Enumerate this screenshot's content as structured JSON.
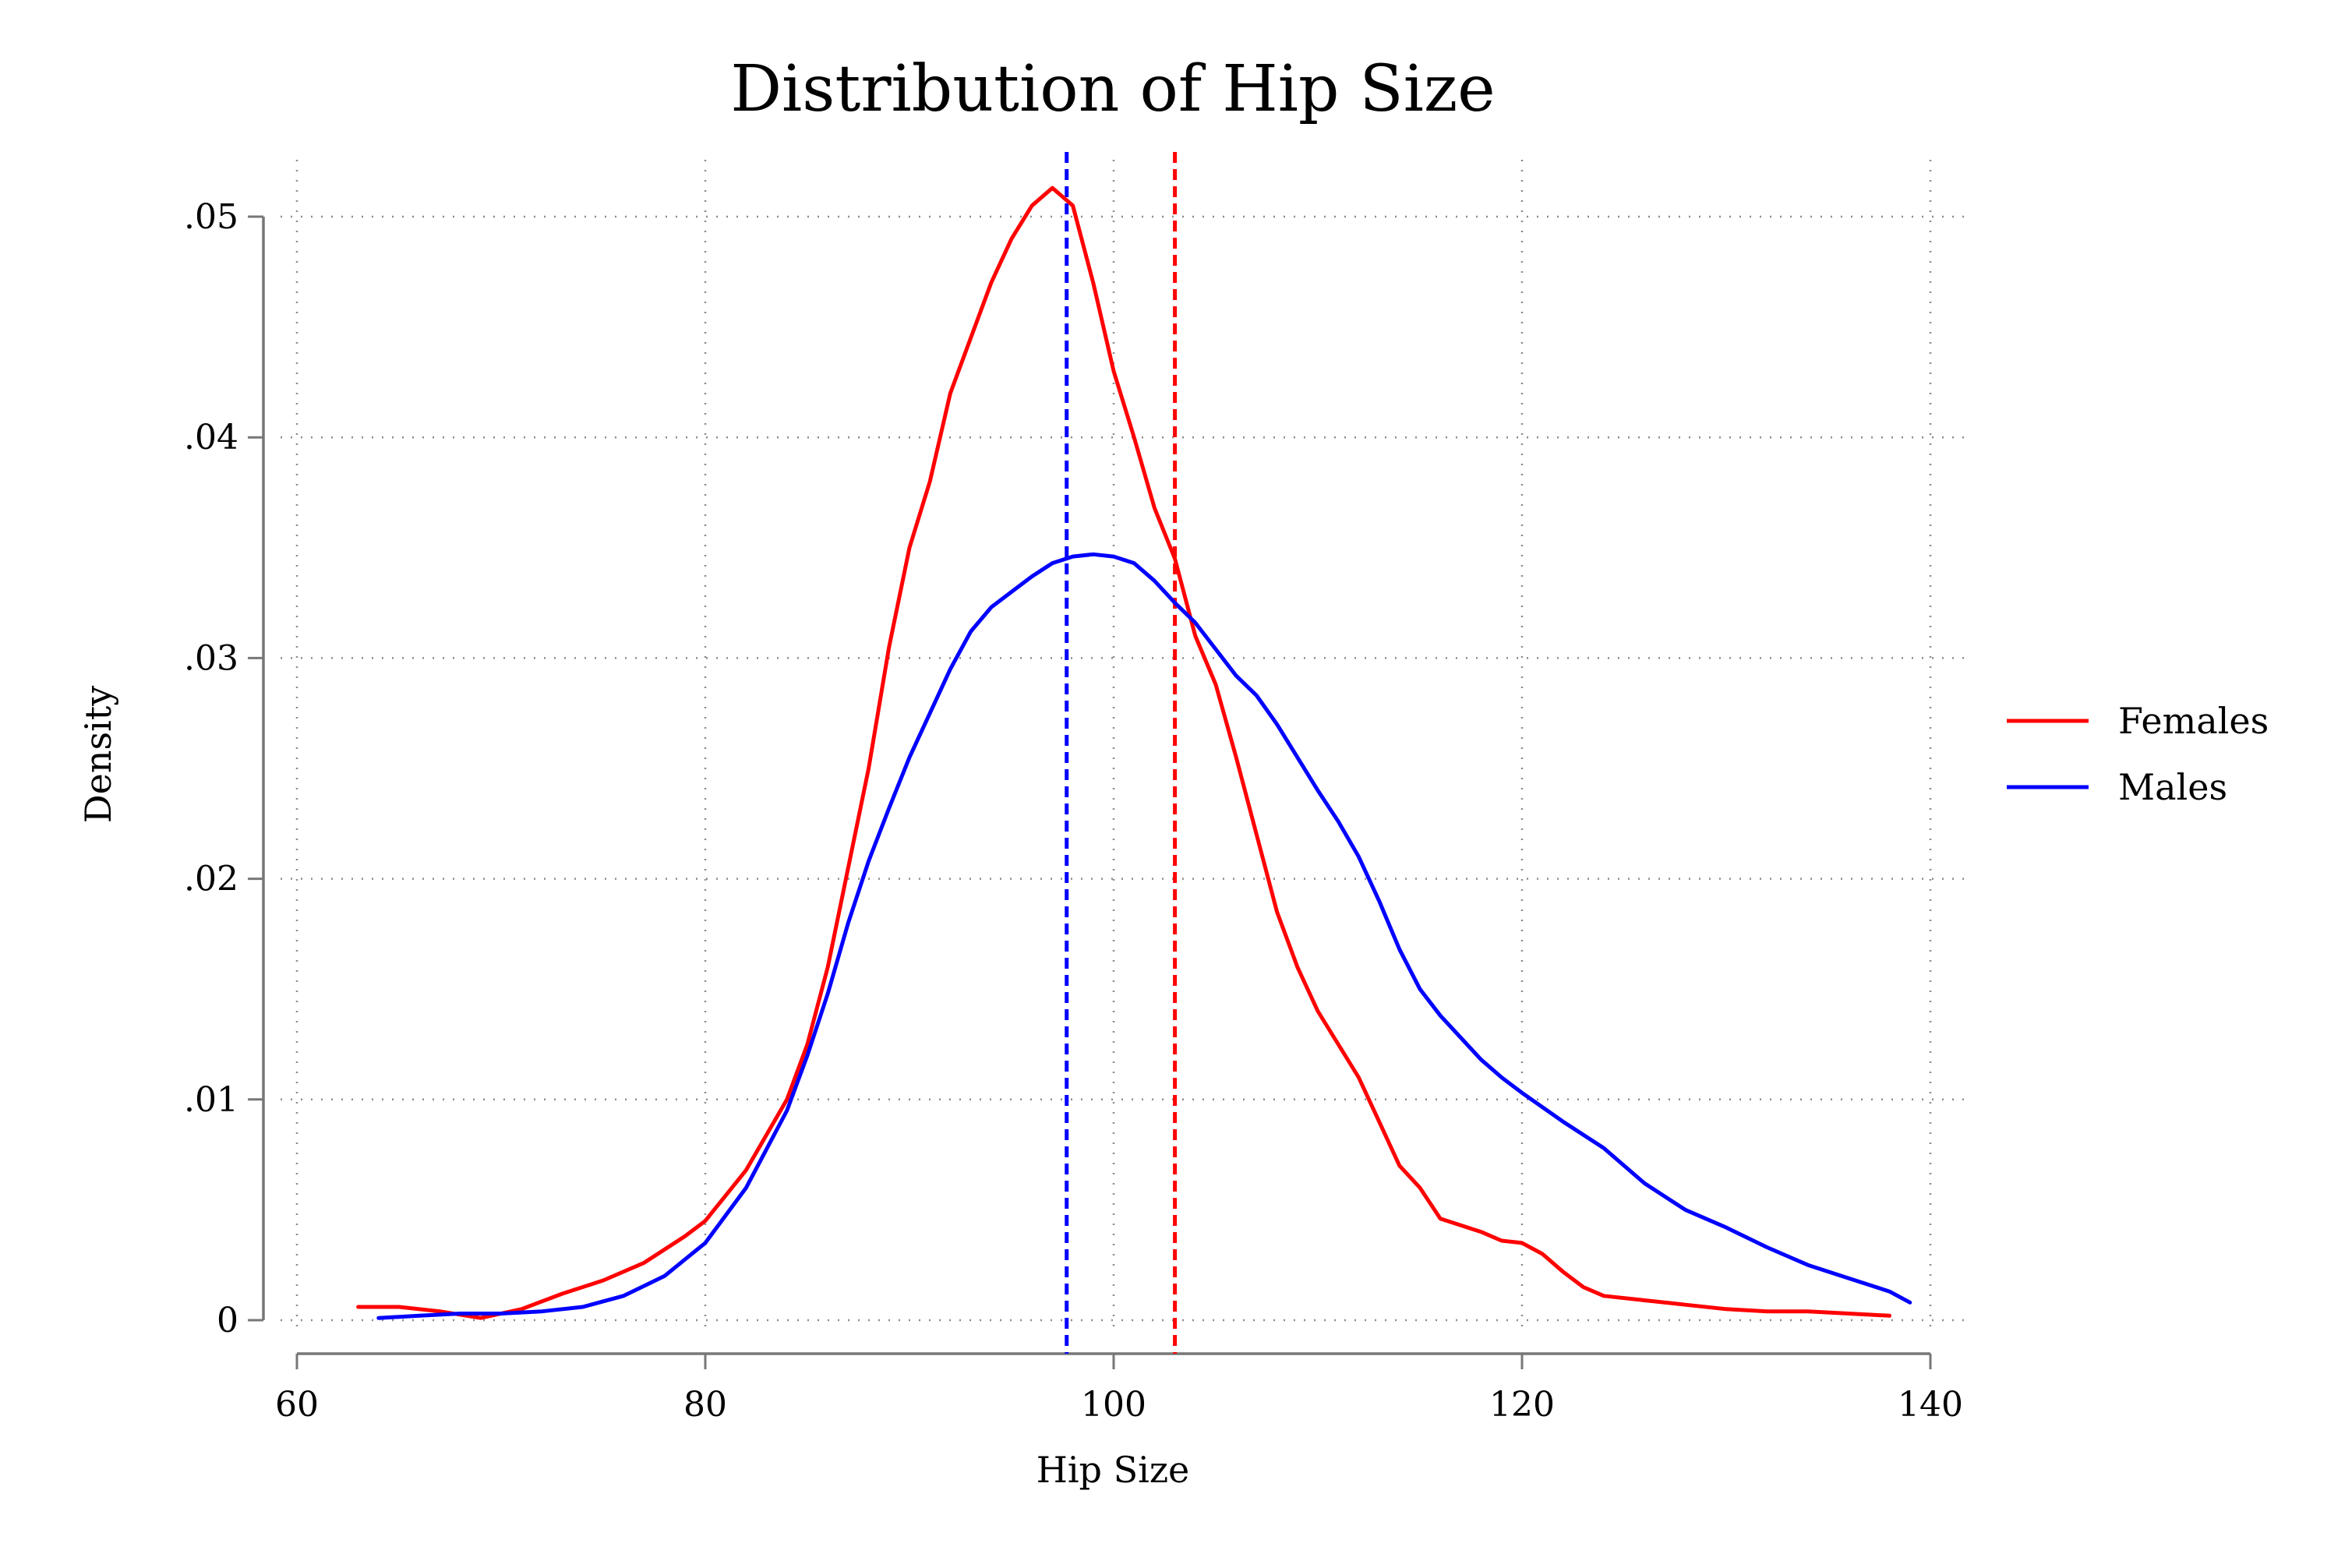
{
  "chart_data": {
    "type": "line",
    "title": "Distribution of Hip Size",
    "xlabel": "Hip Size",
    "ylabel": "Density",
    "xlim": [
      60,
      140
    ],
    "ylim": [
      0,
      0.05
    ],
    "xticks": [
      60,
      80,
      100,
      120,
      140
    ],
    "xtick_labels": [
      "60",
      "80",
      "100",
      "120",
      "140"
    ],
    "yticks": [
      0,
      0.01,
      0.02,
      0.03,
      0.04,
      0.05
    ],
    "ytick_labels": [
      "0",
      ".01",
      ".02",
      ".03",
      ".04",
      ".05"
    ],
    "grid": "dotted",
    "legend_position": "right",
    "series": [
      {
        "name": "Females",
        "color": "#ff0000",
        "points": [
          [
            63,
            0.0006
          ],
          [
            65,
            0.0006
          ],
          [
            67,
            0.0004
          ],
          [
            69,
            0.0001
          ],
          [
            71,
            0.0005
          ],
          [
            73,
            0.0012
          ],
          [
            75,
            0.0018
          ],
          [
            77,
            0.0026
          ],
          [
            79,
            0.0038
          ],
          [
            80,
            0.0045
          ],
          [
            82,
            0.0068
          ],
          [
            84,
            0.01
          ],
          [
            85,
            0.0125
          ],
          [
            86,
            0.016
          ],
          [
            87,
            0.0205
          ],
          [
            88,
            0.025
          ],
          [
            89,
            0.0305
          ],
          [
            90,
            0.035
          ],
          [
            91,
            0.038
          ],
          [
            92,
            0.042
          ],
          [
            93,
            0.0445
          ],
          [
            94,
            0.047
          ],
          [
            95,
            0.049
          ],
          [
            96,
            0.0505
          ],
          [
            97,
            0.0513
          ],
          [
            98,
            0.0505
          ],
          [
            99,
            0.047
          ],
          [
            100,
            0.043
          ],
          [
            101,
            0.04
          ],
          [
            102,
            0.0368
          ],
          [
            103,
            0.0345
          ],
          [
            104,
            0.031
          ],
          [
            105,
            0.0288
          ],
          [
            106,
            0.0255
          ],
          [
            107,
            0.022
          ],
          [
            108,
            0.0185
          ],
          [
            109,
            0.016
          ],
          [
            110,
            0.014
          ],
          [
            111,
            0.0125
          ],
          [
            112,
            0.011
          ],
          [
            113,
            0.009
          ],
          [
            114,
            0.007
          ],
          [
            115,
            0.006
          ],
          [
            116,
            0.0046
          ],
          [
            117,
            0.0043
          ],
          [
            118,
            0.004
          ],
          [
            119,
            0.0036
          ],
          [
            120,
            0.0035
          ],
          [
            121,
            0.003
          ],
          [
            122,
            0.0022
          ],
          [
            123,
            0.0015
          ],
          [
            124,
            0.0011
          ],
          [
            126,
            0.0009
          ],
          [
            128,
            0.0007
          ],
          [
            130,
            0.0005
          ],
          [
            132,
            0.0004
          ],
          [
            134,
            0.0004
          ],
          [
            136,
            0.0003
          ],
          [
            138,
            0.0002
          ]
        ]
      },
      {
        "name": "Males",
        "color": "#0000ff",
        "points": [
          [
            64,
            0.0001
          ],
          [
            66,
            0.0002
          ],
          [
            68,
            0.0003
          ],
          [
            70,
            0.0003
          ],
          [
            72,
            0.0004
          ],
          [
            74,
            0.0006
          ],
          [
            76,
            0.0011
          ],
          [
            78,
            0.002
          ],
          [
            80,
            0.0035
          ],
          [
            82,
            0.006
          ],
          [
            84,
            0.0095
          ],
          [
            85,
            0.012
          ],
          [
            86,
            0.0148
          ],
          [
            87,
            0.018
          ],
          [
            88,
            0.0208
          ],
          [
            89,
            0.0232
          ],
          [
            90,
            0.0255
          ],
          [
            91,
            0.0275
          ],
          [
            92,
            0.0295
          ],
          [
            93,
            0.0312
          ],
          [
            94,
            0.0323
          ],
          [
            95,
            0.033
          ],
          [
            96,
            0.0337
          ],
          [
            97,
            0.0343
          ],
          [
            98,
            0.0346
          ],
          [
            99,
            0.0347
          ],
          [
            100,
            0.0346
          ],
          [
            101,
            0.0343
          ],
          [
            102,
            0.0335
          ],
          [
            103,
            0.0325
          ],
          [
            104,
            0.0316
          ],
          [
            105,
            0.0304
          ],
          [
            106,
            0.0292
          ],
          [
            107,
            0.0283
          ],
          [
            108,
            0.027
          ],
          [
            109,
            0.0255
          ],
          [
            110,
            0.024
          ],
          [
            111,
            0.0226
          ],
          [
            112,
            0.021
          ],
          [
            113,
            0.019
          ],
          [
            114,
            0.0168
          ],
          [
            115,
            0.015
          ],
          [
            116,
            0.0138
          ],
          [
            117,
            0.0128
          ],
          [
            118,
            0.0118
          ],
          [
            119,
            0.011
          ],
          [
            120,
            0.0103
          ],
          [
            122,
            0.009
          ],
          [
            124,
            0.0078
          ],
          [
            126,
            0.0062
          ],
          [
            128,
            0.005
          ],
          [
            130,
            0.0042
          ],
          [
            132,
            0.0033
          ],
          [
            134,
            0.0025
          ],
          [
            136,
            0.0019
          ],
          [
            138,
            0.0013
          ],
          [
            139,
            0.0008
          ]
        ]
      }
    ],
    "reference_lines": [
      {
        "x": 97.7,
        "color": "#0000ff",
        "style": "dashed"
      },
      {
        "x": 103.0,
        "color": "#ff0000",
        "style": "dashed"
      }
    ]
  }
}
